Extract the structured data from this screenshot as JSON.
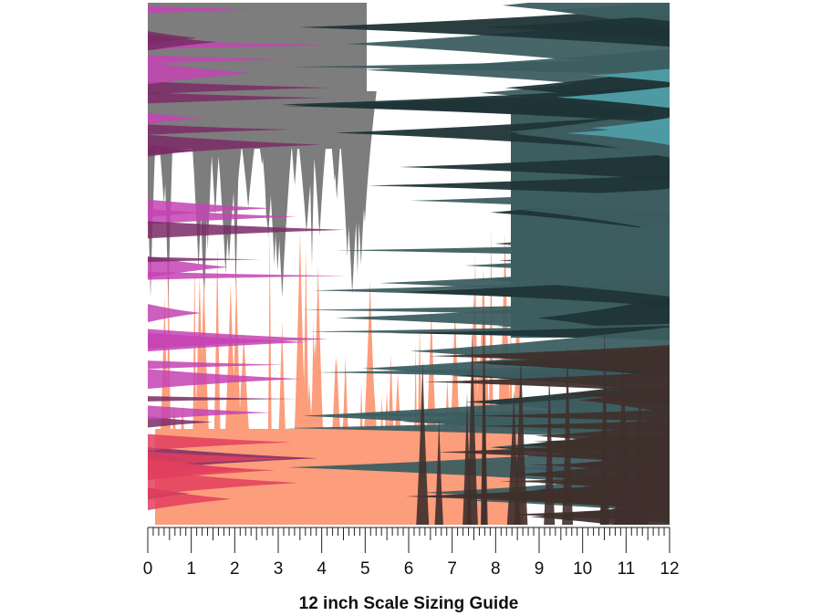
{
  "ruler": {
    "labels": [
      0,
      1,
      2,
      3,
      4,
      5,
      6,
      7,
      8,
      9,
      10,
      11,
      12
    ]
  },
  "caption": "12 inch Scale Sizing Guide"
}
